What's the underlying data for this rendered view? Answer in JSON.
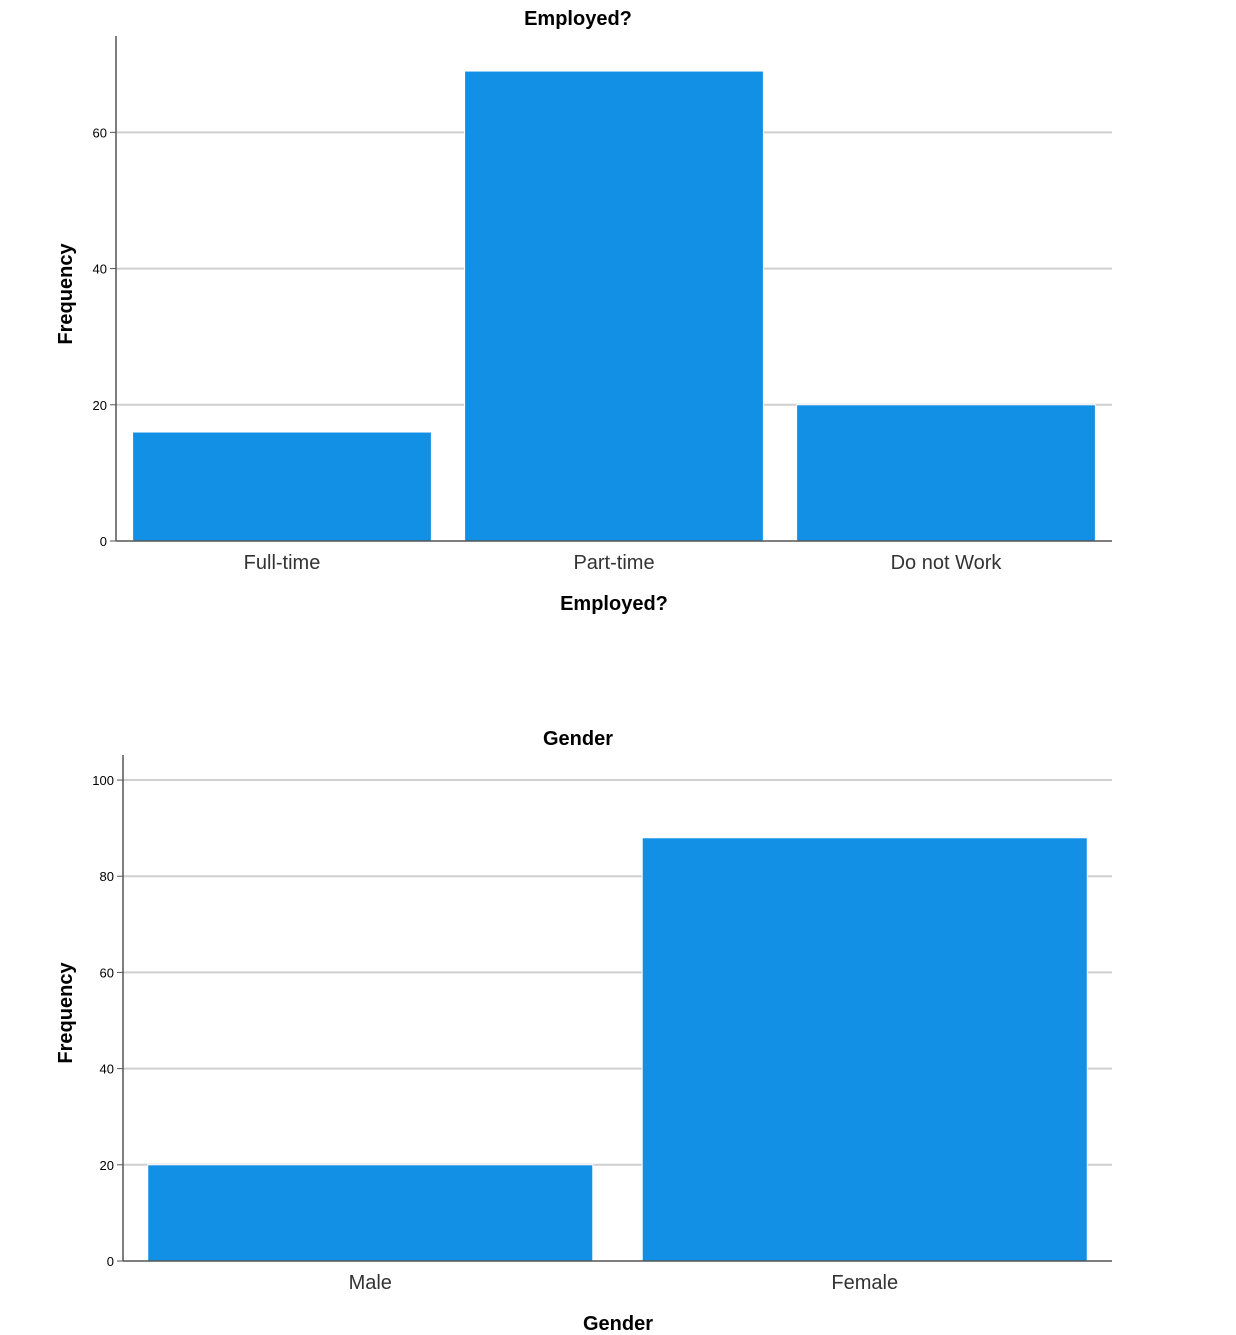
{
  "chart_data": [
    {
      "type": "bar",
      "title": "Employed?",
      "xlabel": "Employed?",
      "ylabel": "Frequency",
      "categories": [
        "Full-time",
        "Part-time",
        "Do not Work"
      ],
      "values": [
        16,
        69,
        20
      ],
      "yticks": [
        0,
        20,
        40,
        60
      ],
      "ylim": [
        0,
        74
      ],
      "grid": true,
      "bar_color": "#1290e6"
    },
    {
      "type": "bar",
      "title": "Gender",
      "xlabel": "Gender",
      "ylabel": "Frequency",
      "categories": [
        "Male",
        "Female"
      ],
      "values": [
        20,
        88
      ],
      "yticks": [
        0,
        20,
        40,
        60,
        80,
        100
      ],
      "ylim": [
        0,
        105
      ],
      "grid": true,
      "bar_color": "#1290e6"
    }
  ]
}
